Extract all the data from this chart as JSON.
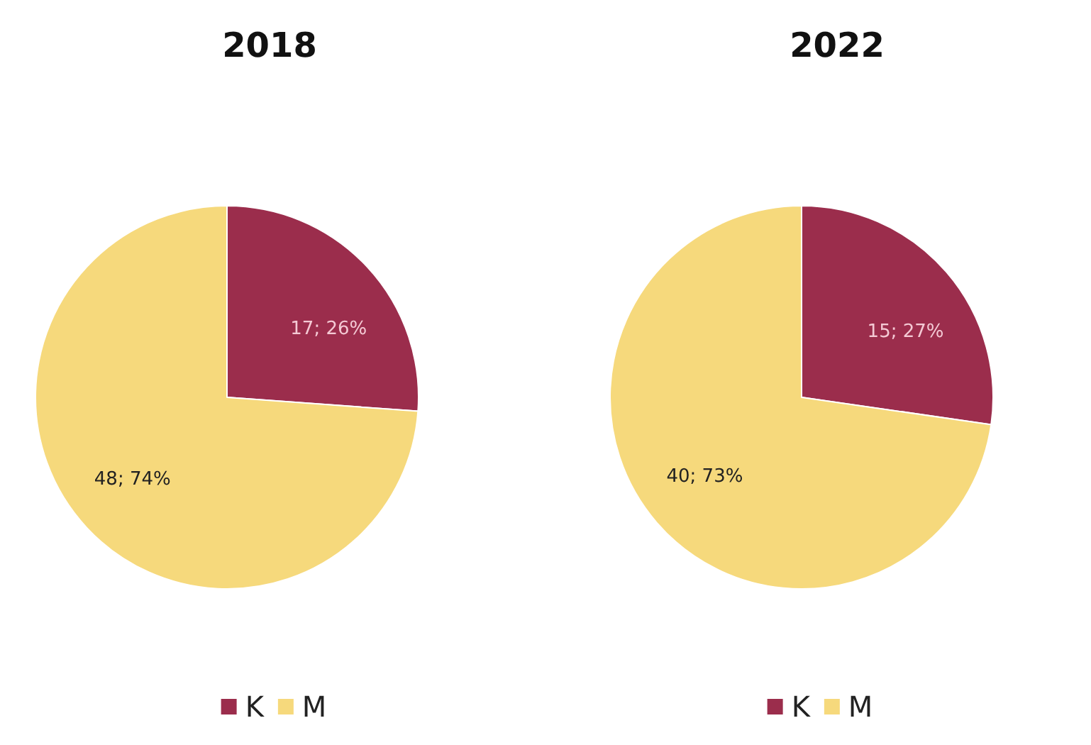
{
  "chart_data": [
    {
      "type": "pie",
      "title": "2018",
      "categories": [
        "K",
        "M"
      ],
      "values": [
        17,
        48
      ],
      "value_labels": [
        "17; 26%",
        "48; 74%"
      ],
      "colors": [
        "#9b2d4c",
        "#f6d97c"
      ],
      "legend": "bottom"
    },
    {
      "type": "pie",
      "title": "2022",
      "categories": [
        "K",
        "M"
      ],
      "values": [
        15,
        40
      ],
      "value_labels": [
        "15; 27%",
        "40; 73%"
      ],
      "colors": [
        "#9b2d4c",
        "#f6d97c"
      ],
      "legend": "bottom"
    }
  ]
}
